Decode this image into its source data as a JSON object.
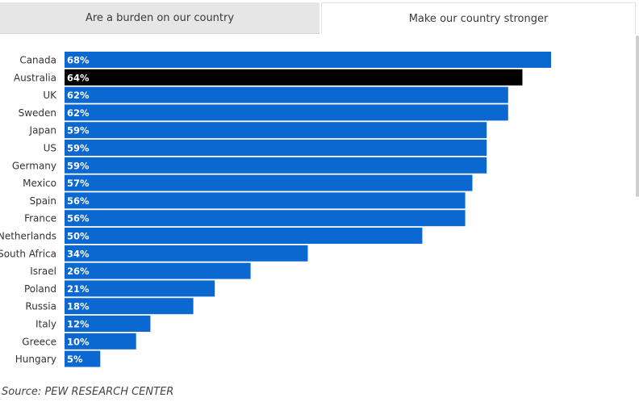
{
  "tabs": [
    {
      "label": "Are a burden on our country",
      "active": false
    },
    {
      "label": "Make our country stronger",
      "active": true
    }
  ],
  "chart_data": {
    "type": "bar",
    "orientation": "horizontal",
    "title": "Make our country stronger",
    "categories": [
      "Canada",
      "Australia",
      "UK",
      "Sweden",
      "Japan",
      "US",
      "Germany",
      "Mexico",
      "Spain",
      "France",
      "Netherlands",
      "South Africa",
      "Israel",
      "Poland",
      "Russia",
      "Italy",
      "Greece",
      "Hungary"
    ],
    "values": [
      68,
      64,
      62,
      62,
      59,
      59,
      59,
      57,
      56,
      56,
      50,
      34,
      26,
      21,
      18,
      12,
      10,
      5
    ],
    "labels": [
      "68%",
      "64%",
      "62%",
      "62%",
      "59%",
      "59%",
      "59%",
      "57%",
      "56%",
      "56%",
      "50%",
      "34%",
      "26%",
      "21%",
      "18%",
      "12%",
      "10%",
      "5%"
    ],
    "unit": "%",
    "highlight": "Australia",
    "colors": {
      "bar": "#0a68d0",
      "highlight": "#000000"
    },
    "xlim": [
      0,
      68
    ]
  },
  "footer": {
    "source": "Source: PEW RESEARCH CENTER"
  }
}
